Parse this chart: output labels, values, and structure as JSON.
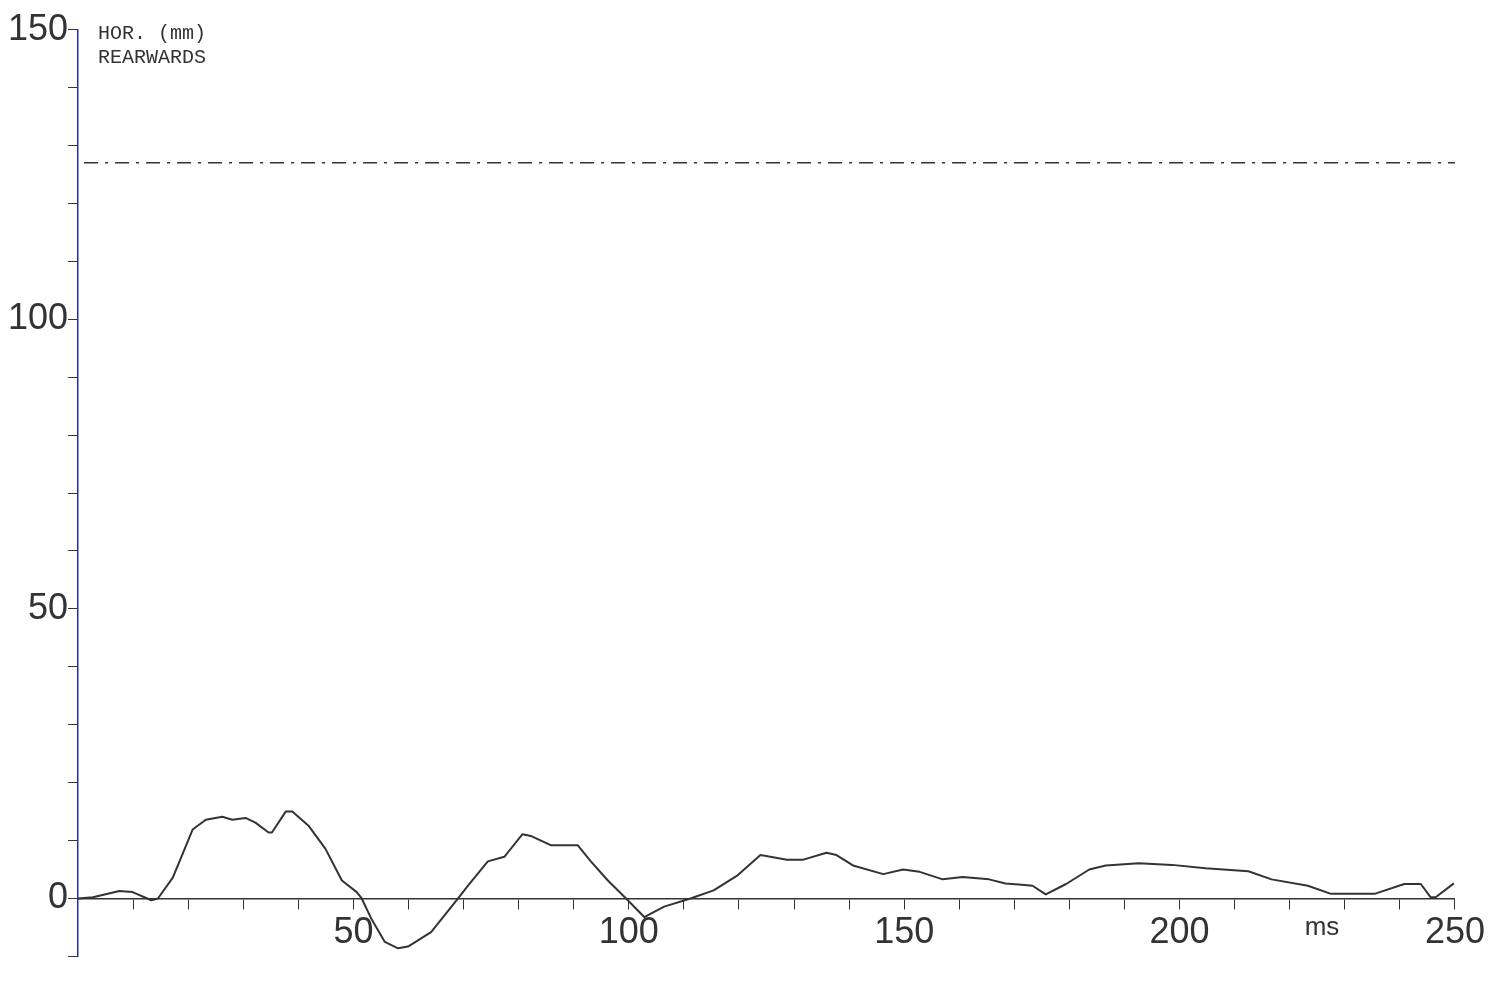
{
  "chart_data": {
    "type": "line",
    "xlabel": "ms",
    "ylabel": "HOR. (mm) REARWARDS",
    "xlim": [
      0,
      250
    ],
    "ylim": [
      -10,
      150
    ],
    "xticks": [
      {
        "value": 10,
        "label": null
      },
      {
        "value": 20,
        "label": null
      },
      {
        "value": 30,
        "label": null
      },
      {
        "value": 40,
        "label": null
      },
      50,
      {
        "value": 60,
        "label": null
      },
      {
        "value": 70,
        "label": null
      },
      {
        "value": 80,
        "label": null
      },
      {
        "value": 90,
        "label": null
      },
      100,
      {
        "value": 110,
        "label": null
      },
      {
        "value": 120,
        "label": null
      },
      {
        "value": 130,
        "label": null
      },
      {
        "value": 140,
        "label": null
      },
      150,
      {
        "value": 160,
        "label": null
      },
      {
        "value": 170,
        "label": null
      },
      {
        "value": 180,
        "label": null
      },
      {
        "value": 190,
        "label": null
      },
      200,
      {
        "value": 210,
        "label": null
      },
      {
        "value": 220,
        "label": null
      },
      {
        "value": 230,
        "label": null
      },
      {
        "value": 240,
        "label": null
      },
      250
    ],
    "yticks": [
      {
        "value": -10,
        "label": null
      },
      0,
      {
        "value": 10,
        "label": null
      },
      {
        "value": 20,
        "label": null
      },
      {
        "value": 30,
        "label": null
      },
      {
        "value": 40,
        "label": null
      },
      50,
      {
        "value": 60,
        "label": null
      },
      {
        "value": 70,
        "label": null
      },
      {
        "value": 80,
        "label": null
      },
      {
        "value": 90,
        "label": null
      },
      100,
      {
        "value": 110,
        "label": null
      },
      {
        "value": 120,
        "label": null
      },
      {
        "value": 130,
        "label": null
      },
      {
        "value": 140,
        "label": null
      },
      150
    ],
    "grid": false,
    "legend": false,
    "marker": "none",
    "line_style": "solid",
    "ref_lines": [
      {
        "axis": "y",
        "value": 127,
        "line_style": "dashdot",
        "color": "#333333"
      }
    ],
    "series": [
      {
        "color": "#333333",
        "x": [
          0,
          2.7,
          7.5,
          9.9,
          13.3,
          14.5,
          17.2,
          20.8,
          23.2,
          26.2,
          28,
          30.4,
          32.2,
          34.6,
          35.2,
          37.7,
          38.9,
          41.9,
          44.9,
          47.9,
          50.6,
          51.5,
          53.3,
          55.7,
          58.1,
          59.9,
          64.1,
          69,
          70.8,
          74.4,
          77.4,
          80.7,
          82.2,
          85.8,
          87.1,
          90.7,
          93.1,
          96.2,
          99.5,
          102.8,
          106.4,
          111.2,
          115.4,
          119.6,
          123.9,
          128.7,
          131.7,
          135.9,
          137.7,
          140.7,
          146.2,
          149.8,
          152.8,
          157,
          160.6,
          165.4,
          168.4,
          173.3,
          175.7,
          179.4,
          183.6,
          186.6,
          192.6,
          198.6,
          204.7,
          212.5,
          216.7,
          223.3,
          227.5,
          235.4,
          240.8,
          243.8,
          245.6,
          246.5,
          249.8
        ],
        "values": [
          0,
          0.2,
          1.3,
          1.1,
          -0.3,
          0,
          3.6,
          11.9,
          13.6,
          14.1,
          13.6,
          13.9,
          13.1,
          11.4,
          11.4,
          15,
          15,
          12.5,
          8.6,
          3.1,
          1.1,
          0,
          -3.6,
          -7.5,
          -8.6,
          -8.3,
          -5.8,
          0,
          2.2,
          6.4,
          7.2,
          11.1,
          10.8,
          9.2,
          9.2,
          9.2,
          6.4,
          3.1,
          0,
          -3.2,
          -1.4,
          0,
          1.4,
          3.9,
          7.5,
          6.7,
          6.7,
          7.9,
          7.5,
          5.7,
          4.2,
          5,
          4.6,
          3.3,
          3.7,
          3.3,
          2.6,
          2.2,
          0.7,
          2.5,
          5,
          5.7,
          6.1,
          5.8,
          5.2,
          4.7,
          3.3,
          2.2,
          0.8,
          0.8,
          2.5,
          2.5,
          0.2,
          0.2,
          2.6
        ]
      }
    ]
  }
}
